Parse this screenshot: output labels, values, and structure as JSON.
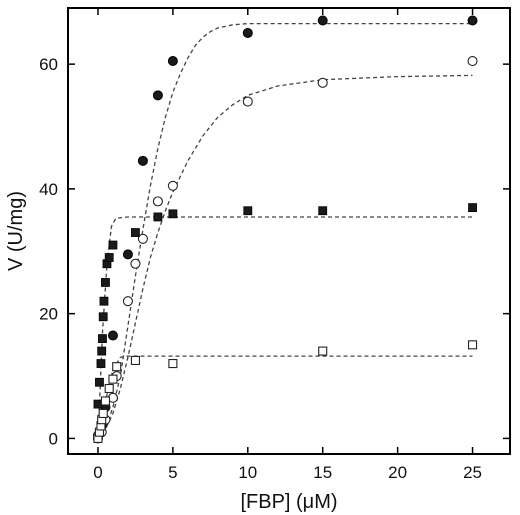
{
  "chart_data": {
    "type": "scatter",
    "xlabel": "[FBP] (μM)",
    "ylabel": "V (U/mg)",
    "xlim": [
      -2,
      27.5
    ],
    "ylim": [
      -2.5,
      69
    ],
    "xticks": [
      0,
      5,
      10,
      15,
      20,
      25
    ],
    "yticks": [
      0,
      20,
      40,
      60
    ],
    "grid": false,
    "series": [
      {
        "marker": "filled-circle",
        "points": [
          [
            0,
            0
          ],
          [
            0.25,
            2
          ],
          [
            0.5,
            5
          ],
          [
            1,
            16.5
          ],
          [
            2,
            29.5
          ],
          [
            3,
            44.5
          ],
          [
            4,
            55
          ],
          [
            5,
            60.5
          ],
          [
            10,
            65
          ],
          [
            15,
            67
          ],
          [
            25,
            67
          ]
        ],
        "fit": [
          [
            0,
            0
          ],
          [
            0.5,
            1.5
          ],
          [
            1,
            5
          ],
          [
            1.5,
            10
          ],
          [
            2,
            18
          ],
          [
            2.5,
            26
          ],
          [
            3,
            33.5
          ],
          [
            3.5,
            40.5
          ],
          [
            4,
            46.5
          ],
          [
            4.5,
            51.5
          ],
          [
            5,
            55.5
          ],
          [
            5.5,
            58.5
          ],
          [
            6,
            61
          ],
          [
            6.5,
            63
          ],
          [
            7,
            64.3
          ],
          [
            7.5,
            65.2
          ],
          [
            8,
            65.8
          ],
          [
            9,
            66.3
          ],
          [
            10,
            66.5
          ],
          [
            15,
            66.5
          ],
          [
            25,
            66.5
          ]
        ]
      },
      {
        "marker": "open-circle",
        "points": [
          [
            0,
            0.5
          ],
          [
            0.25,
            1
          ],
          [
            0.5,
            3
          ],
          [
            1,
            6.5
          ],
          [
            1.25,
            10
          ],
          [
            2,
            22
          ],
          [
            2.5,
            28
          ],
          [
            3,
            32
          ],
          [
            4,
            38
          ],
          [
            5,
            40.5
          ],
          [
            10,
            54
          ],
          [
            15,
            57
          ],
          [
            25,
            60.5
          ]
        ]
      },
      {
        "marker": "filled-square",
        "points": [
          [
            0,
            5.5
          ],
          [
            0.1,
            9
          ],
          [
            0.2,
            12
          ],
          [
            0.25,
            14
          ],
          [
            0.3,
            16
          ],
          [
            0.35,
            19.5
          ],
          [
            0.4,
            22
          ],
          [
            0.5,
            25
          ],
          [
            0.6,
            28
          ],
          [
            0.75,
            29
          ],
          [
            1,
            31
          ],
          [
            2.5,
            33
          ],
          [
            4,
            35.5
          ],
          [
            5,
            36
          ],
          [
            10,
            36.5
          ],
          [
            15,
            36.5
          ],
          [
            25,
            37
          ]
        ],
        "fit": [
          [
            0,
            0
          ],
          [
            0.3,
            17
          ],
          [
            0.6,
            28
          ],
          [
            0.9,
            34
          ],
          [
            1.2,
            35.3
          ],
          [
            2,
            35.5
          ],
          [
            25,
            35.5
          ]
        ]
      },
      {
        "marker": "open-square",
        "points": [
          [
            0,
            0
          ],
          [
            0.1,
            1
          ],
          [
            0.2,
            2
          ],
          [
            0.25,
            3
          ],
          [
            0.35,
            4
          ],
          [
            0.5,
            6
          ],
          [
            0.75,
            8
          ],
          [
            1,
            9.5
          ],
          [
            1.25,
            11.5
          ],
          [
            2.5,
            12.5
          ],
          [
            5,
            12
          ],
          [
            15,
            14
          ],
          [
            25,
            15
          ]
        ],
        "fit": [
          [
            0,
            0
          ],
          [
            0.5,
            6
          ],
          [
            1,
            11
          ],
          [
            1.5,
            13
          ],
          [
            2,
            13.2
          ],
          [
            25,
            13.2
          ]
        ]
      }
    ],
    "open_circle_fit": [
      [
        0,
        0
      ],
      [
        0.5,
        1.5
      ],
      [
        1,
        4
      ],
      [
        1.5,
        8
      ],
      [
        2,
        13
      ],
      [
        2.5,
        18.5
      ],
      [
        3,
        24
      ],
      [
        3.5,
        29
      ],
      [
        4,
        33
      ],
      [
        4.5,
        36.5
      ],
      [
        5,
        39.5
      ],
      [
        6,
        44.5
      ],
      [
        7,
        48.5
      ],
      [
        8,
        51.5
      ],
      [
        9,
        53.5
      ],
      [
        10,
        55
      ],
      [
        12,
        56.5
      ],
      [
        15,
        57.5
      ],
      [
        20,
        58
      ],
      [
        25,
        58.2
      ]
    ]
  }
}
